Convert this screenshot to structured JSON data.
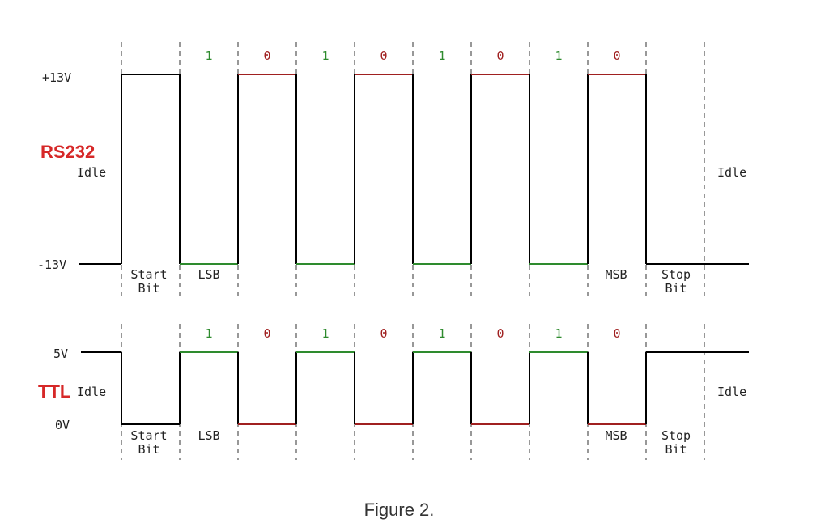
{
  "rs232": {
    "title": "RS232",
    "high_label": "+13V",
    "low_label": "-13V",
    "idle_left": "Idle",
    "idle_right": "Idle",
    "bits": [
      "1",
      "0",
      "1",
      "0",
      "1",
      "0",
      "1",
      "0"
    ],
    "levels": [
      "L",
      "H",
      "L",
      "H",
      "L",
      "H",
      "L",
      "H"
    ],
    "start_level": "H",
    "idle_level": "L",
    "start_bit_line1": "Start",
    "start_bit_line2": "Bit",
    "lsb_label": "LSB",
    "msb_label": "MSB",
    "stop_bit_line1": "Stop",
    "stop_bit_line2": "Bit"
  },
  "ttl": {
    "title": "TTL",
    "high_label": "5V",
    "low_label": "0V",
    "idle_left": "Idle",
    "idle_right": "Idle",
    "bits": [
      "1",
      "0",
      "1",
      "0",
      "1",
      "0",
      "1",
      "0"
    ],
    "levels": [
      "H",
      "L",
      "H",
      "L",
      "H",
      "L",
      "H",
      "L"
    ],
    "start_level": "L",
    "idle_level": "H",
    "start_bit_line1": "Start",
    "start_bit_line2": "Bit",
    "lsb_label": "LSB",
    "msb_label": "MSB",
    "stop_bit_line1": "Stop",
    "stop_bit_line2": "Bit"
  },
  "caption": "Figure 2.",
  "colors": {
    "one_bit": "#2e8b2e",
    "zero_bit": "#a02020",
    "title_red": "#d62828",
    "signal": "#000000",
    "divider": "#777777"
  }
}
